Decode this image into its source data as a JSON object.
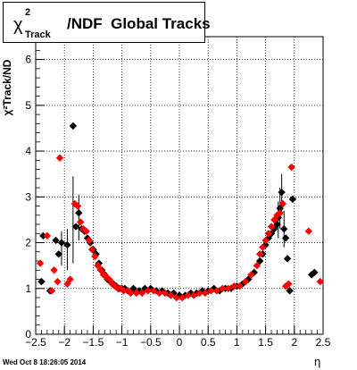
{
  "title": {
    "symbol": "χ",
    "superscript": "2",
    "subscript": "Track",
    "rest": "/NDF  Global Tracks"
  },
  "timestamp": "Wed Oct  8 18:26:05 2014",
  "chart_data": {
    "type": "scatter",
    "xlabel": "η",
    "ylabel": "χ²Track/ND",
    "xlim": [
      -2.5,
      2.5
    ],
    "ylim": [
      0,
      6.5
    ],
    "xticks": [
      "−2.5",
      "−2",
      "−1.5",
      "−1",
      "−0.5",
      "0",
      "0.5",
      "1",
      "1.5",
      "2",
      "2.5"
    ],
    "xtick_values": [
      -2.5,
      -2,
      -1.5,
      -1,
      -0.5,
      0,
      0.5,
      1,
      1.5,
      2,
      2.5
    ],
    "yticks": [
      "0",
      "1",
      "2",
      "3",
      "4",
      "5",
      "6"
    ],
    "ytick_values": [
      0,
      1,
      2,
      3,
      4,
      5,
      6
    ],
    "grid": true,
    "series": [
      {
        "color": "#000000",
        "marker": "diamond",
        "points": [
          [
            -2.4,
            1.15
          ],
          [
            -2.37,
            2.15
          ],
          [
            -2.25,
            0.95
          ],
          [
            -2.15,
            2.05
          ],
          [
            -2.1,
            1.75
          ],
          [
            -2.05,
            2.0
          ],
          [
            -1.95,
            1.95
          ],
          [
            -1.85,
            4.55
          ],
          [
            -1.8,
            2.35
          ],
          [
            -1.75,
            2.65
          ],
          [
            -1.7,
            2.3
          ],
          [
            -1.65,
            2.25
          ],
          [
            -1.6,
            2.1
          ],
          [
            -1.55,
            2.0
          ],
          [
            -1.5,
            1.85
          ],
          [
            -1.45,
            1.75
          ],
          [
            -1.4,
            1.55
          ],
          [
            -1.35,
            1.4
          ],
          [
            -1.3,
            1.3
          ],
          [
            -1.25,
            1.2
          ],
          [
            -1.2,
            1.15
          ],
          [
            -1.15,
            1.1
          ],
          [
            -1.1,
            1.05
          ],
          [
            -1.05,
            1.0
          ],
          [
            -1.0,
            1.0
          ],
          [
            -0.95,
            1.0
          ],
          [
            -0.9,
            0.95
          ],
          [
            -0.8,
            1.0
          ],
          [
            -0.7,
            0.95
          ],
          [
            -0.6,
            1.0
          ],
          [
            -0.5,
            1.0
          ],
          [
            -0.4,
            0.95
          ],
          [
            -0.3,
            0.95
          ],
          [
            -0.2,
            0.9
          ],
          [
            -0.1,
            0.9
          ],
          [
            0.0,
            0.85
          ],
          [
            0.1,
            0.85
          ],
          [
            0.2,
            0.9
          ],
          [
            0.3,
            0.9
          ],
          [
            0.4,
            0.95
          ],
          [
            0.5,
            0.95
          ],
          [
            0.6,
            1.0
          ],
          [
            0.7,
            0.95
          ],
          [
            0.8,
            1.0
          ],
          [
            0.9,
            1.0
          ],
          [
            1.0,
            1.05
          ],
          [
            1.1,
            1.1
          ],
          [
            1.2,
            1.2
          ],
          [
            1.3,
            1.35
          ],
          [
            1.4,
            1.6
          ],
          [
            1.45,
            1.75
          ],
          [
            1.5,
            1.95
          ],
          [
            1.55,
            2.1
          ],
          [
            1.6,
            2.2
          ],
          [
            1.65,
            2.3
          ],
          [
            1.7,
            2.4
          ],
          [
            1.72,
            2.55
          ],
          [
            1.75,
            2.75
          ],
          [
            1.78,
            3.1
          ],
          [
            1.82,
            2.3
          ],
          [
            1.85,
            2.1
          ],
          [
            1.88,
            1.65
          ],
          [
            1.92,
            0.95
          ],
          [
            1.97,
            2.95
          ],
          [
            2.3,
            1.3
          ],
          [
            2.35,
            1.35
          ]
        ]
      },
      {
        "color": "#ff0000",
        "marker": "diamond",
        "points": [
          [
            -2.42,
            1.55
          ],
          [
            -2.3,
            2.15
          ],
          [
            -2.22,
            0.95
          ],
          [
            -2.18,
            1.4
          ],
          [
            -2.12,
            1.15
          ],
          [
            -2.08,
            3.85
          ],
          [
            -1.95,
            1.1
          ],
          [
            -1.9,
            1.2
          ],
          [
            -1.82,
            2.85
          ],
          [
            -1.77,
            2.8
          ],
          [
            -1.72,
            2.45
          ],
          [
            -1.67,
            2.3
          ],
          [
            -1.62,
            2.25
          ],
          [
            -1.57,
            2.05
          ],
          [
            -1.52,
            1.85
          ],
          [
            -1.47,
            1.7
          ],
          [
            -1.42,
            1.5
          ],
          [
            -1.37,
            1.4
          ],
          [
            -1.32,
            1.3
          ],
          [
            -1.27,
            1.25
          ],
          [
            -1.22,
            1.2
          ],
          [
            -1.17,
            1.1
          ],
          [
            -1.12,
            1.05
          ],
          [
            -1.07,
            1.0
          ],
          [
            -1.02,
            1.0
          ],
          [
            -0.97,
            0.95
          ],
          [
            -0.9,
            0.95
          ],
          [
            -0.85,
            0.9
          ],
          [
            -0.75,
            0.9
          ],
          [
            -0.65,
            0.9
          ],
          [
            -0.55,
            0.95
          ],
          [
            -0.45,
            0.95
          ],
          [
            -0.35,
            0.9
          ],
          [
            -0.25,
            0.9
          ],
          [
            -0.15,
            0.85
          ],
          [
            -0.05,
            0.8
          ],
          [
            0.05,
            0.8
          ],
          [
            0.15,
            0.85
          ],
          [
            0.25,
            0.85
          ],
          [
            0.35,
            0.9
          ],
          [
            0.45,
            0.9
          ],
          [
            0.55,
            0.95
          ],
          [
            0.65,
            0.95
          ],
          [
            0.75,
            1.0
          ],
          [
            0.85,
            1.0
          ],
          [
            0.95,
            1.05
          ],
          [
            1.05,
            1.05
          ],
          [
            1.15,
            1.15
          ],
          [
            1.25,
            1.3
          ],
          [
            1.35,
            1.5
          ],
          [
            1.4,
            1.75
          ],
          [
            1.45,
            1.9
          ],
          [
            1.5,
            2.05
          ],
          [
            1.55,
            2.2
          ],
          [
            1.6,
            2.35
          ],
          [
            1.65,
            2.5
          ],
          [
            1.7,
            2.6
          ],
          [
            1.75,
            2.65
          ],
          [
            1.8,
            2.85
          ],
          [
            1.85,
            1.05
          ],
          [
            1.9,
            1.1
          ],
          [
            1.95,
            3.65
          ],
          [
            2.25,
            2.25
          ],
          [
            2.45,
            1.15
          ]
        ]
      }
    ],
    "error_bars": [
      {
        "x": -1.85,
        "lo": 1.55,
        "hi": 3.45
      },
      {
        "x": -1.75,
        "lo": 2.05,
        "hi": 3.05
      },
      {
        "x": -1.95,
        "lo": 1.4,
        "hi": 2.3
      },
      {
        "x": -2.05,
        "lo": 1.5,
        "hi": 2.25
      },
      {
        "x": 1.78,
        "lo": 2.6,
        "hi": 3.5
      },
      {
        "x": 1.75,
        "lo": 2.3,
        "hi": 3.2
      },
      {
        "x": 1.82,
        "lo": 1.9,
        "hi": 2.7
      },
      {
        "x": 1.72,
        "lo": 2.1,
        "hi": 2.9
      }
    ]
  }
}
